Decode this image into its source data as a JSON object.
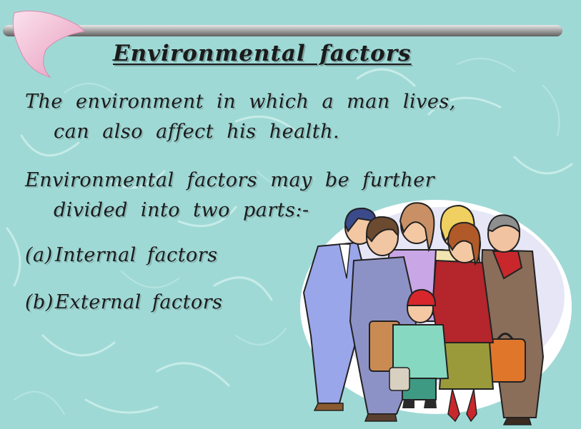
{
  "slide": {
    "title": "Environmental  factors",
    "paragraph1": {
      "line1": "The  environment  in  which  a  man  lives,",
      "line2": "can  also  affect  his  health."
    },
    "paragraph2": {
      "line1": "Environmental  factors  may  be  further",
      "line2": "divided  into  two  parts:-"
    },
    "list": [
      {
        "marker": "(a)",
        "text": "Internal  factors"
      },
      {
        "marker": "(b)",
        "text": "External  factors"
      }
    ]
  },
  "theme": {
    "background": "#9fd9d6",
    "bar": "#8c8c8c",
    "boomerang": "#f2b8cf",
    "text": "#1b1b1b"
  },
  "clipart": {
    "icon": "group-of-people-clipart"
  }
}
